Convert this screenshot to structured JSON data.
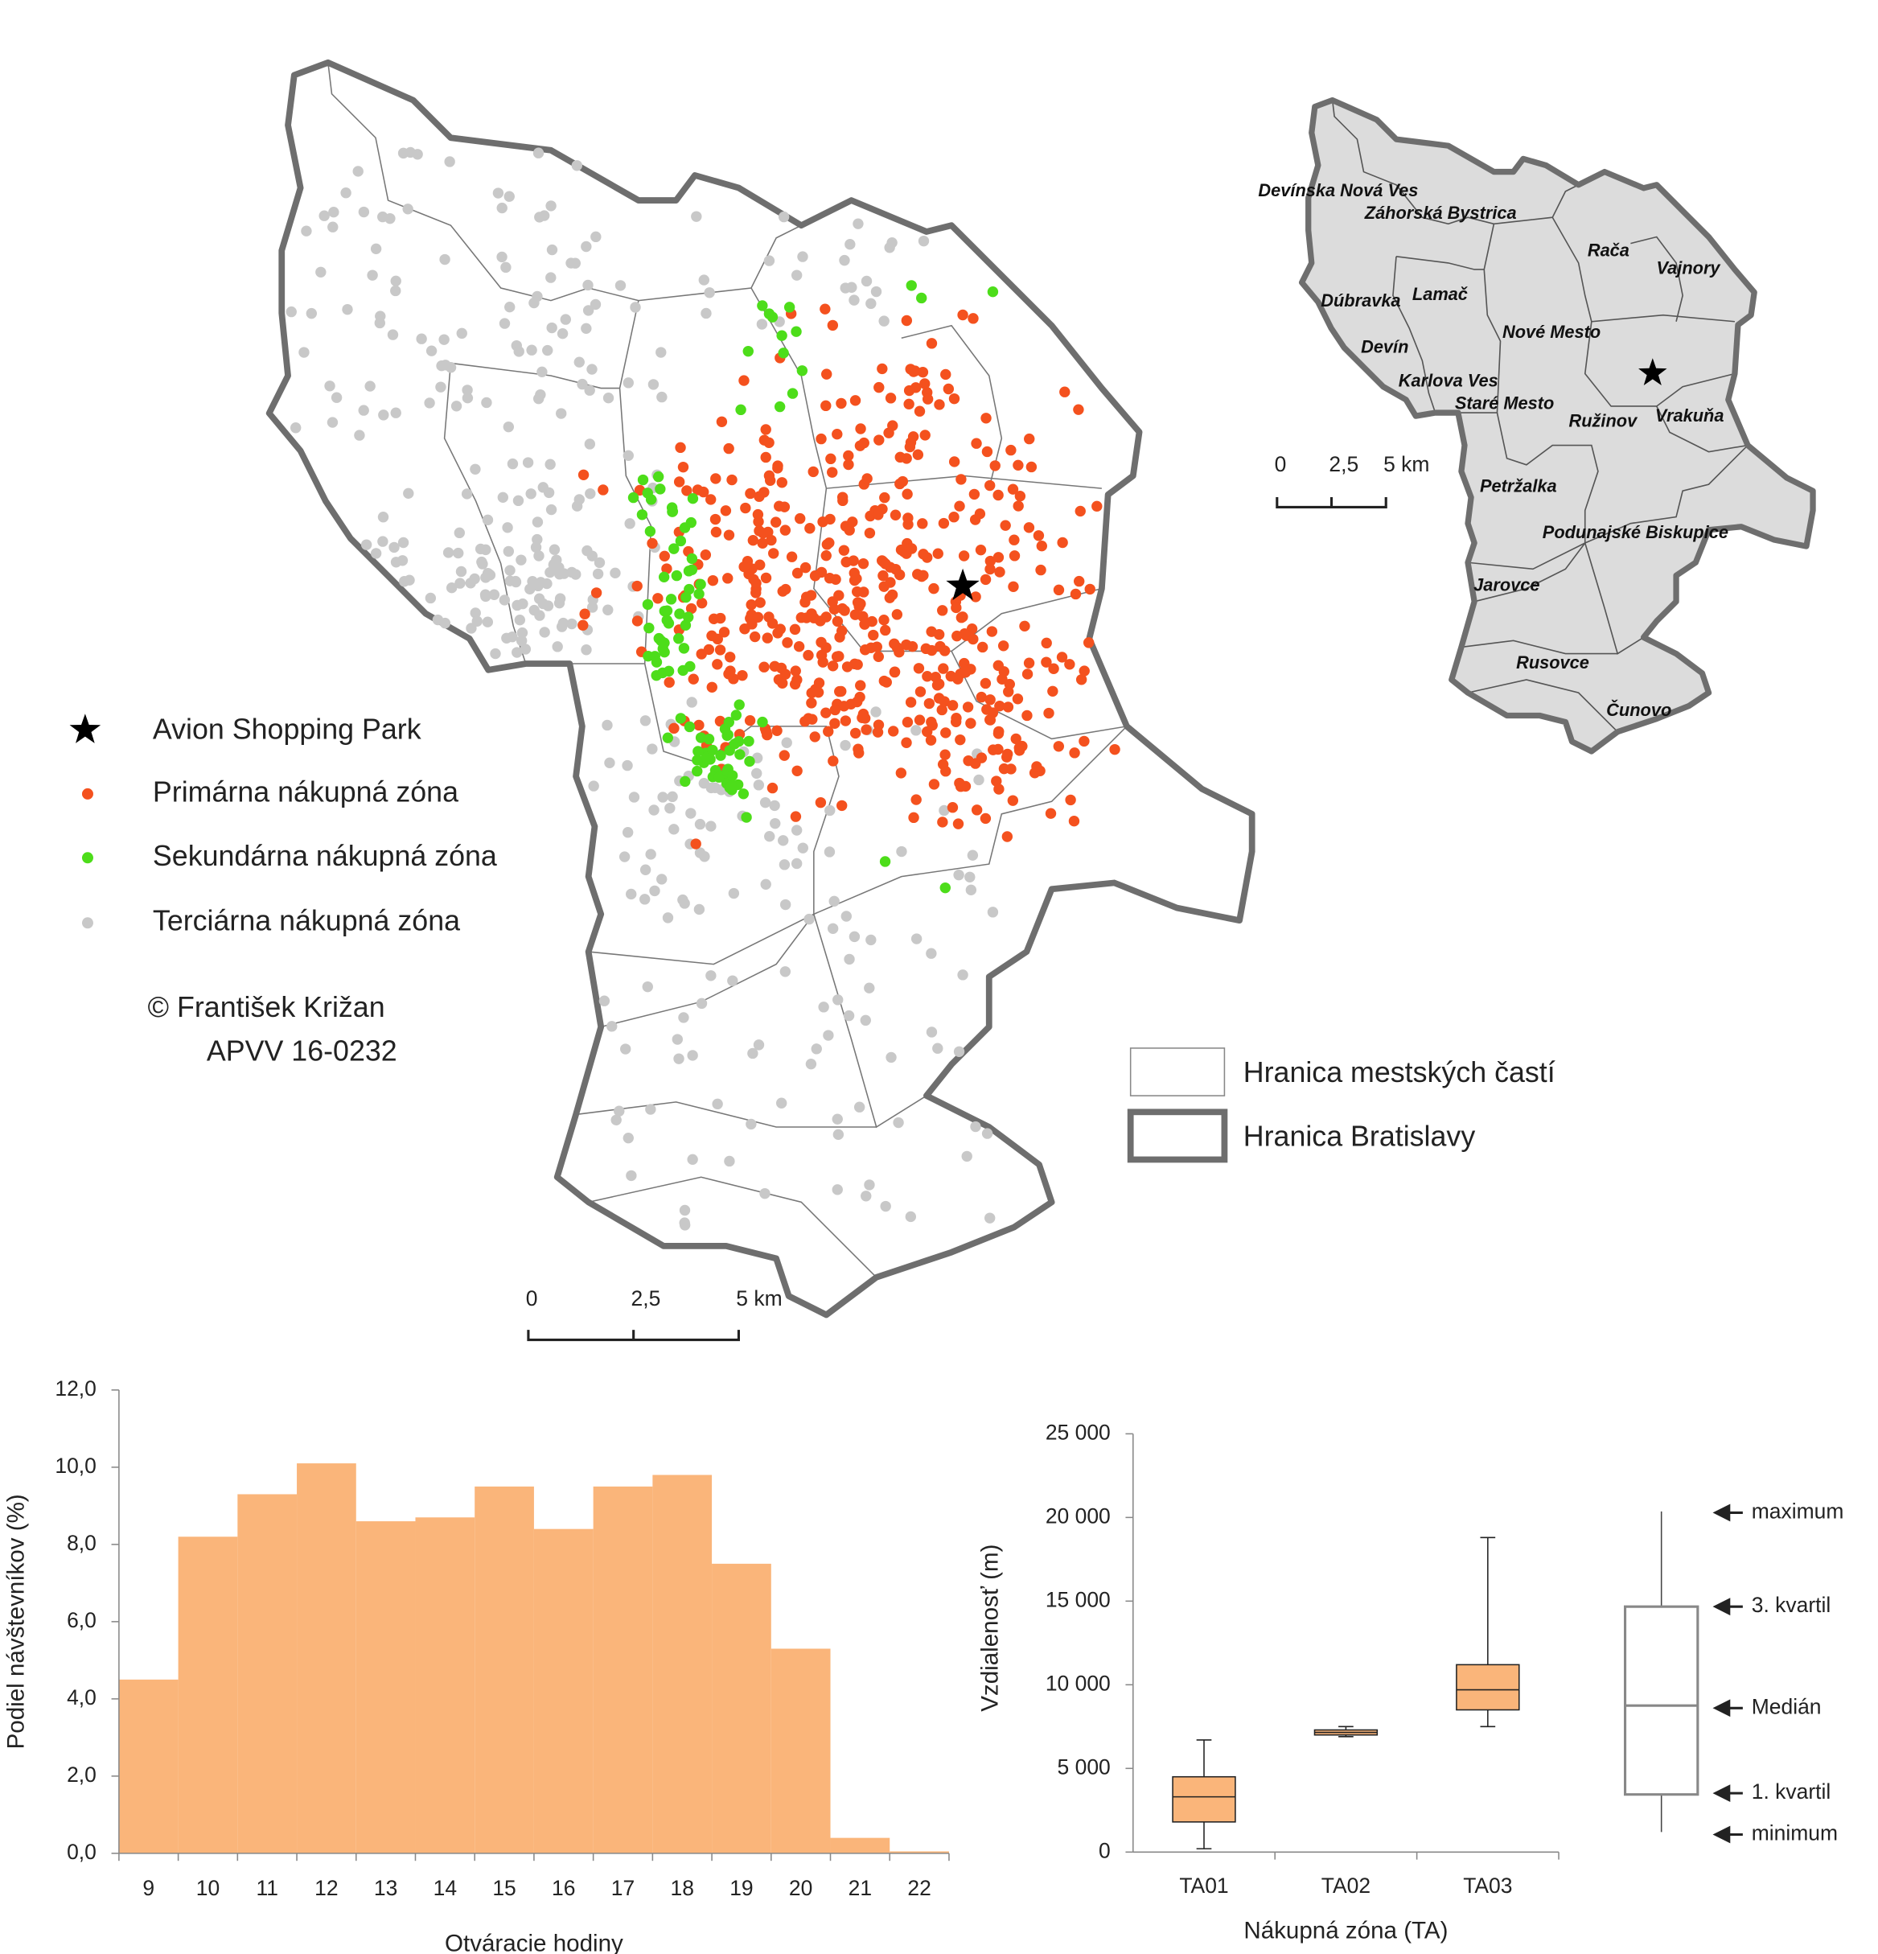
{
  "map": {
    "legend": [
      {
        "label": "Avion Shopping Park",
        "color": "#000000"
      },
      {
        "label": "Primárna nákupná zóna",
        "color": "#f4511e"
      },
      {
        "label": "Sekundárna nákupná zóna",
        "color": "#4ddd1a"
      },
      {
        "label": "Terciárna nákupná zóna",
        "color": "#c8c8c8"
      }
    ],
    "copyright": "© František Križan",
    "project": "APVV 16-0232",
    "scale_labels": [
      "0",
      "2,5",
      "5 km"
    ],
    "boundary_legend": [
      "Hranica mestských častí",
      "Hranica Bratislavy"
    ],
    "districts": [
      "Devínska Nová Ves",
      "Záhorská Bystrica",
      "Rača",
      "Vajnory",
      "Dúbravka",
      "Lamač",
      "Devín",
      "Nové Mesto",
      "Karlova Ves",
      "Staré Mesto",
      "Ružinov",
      "Vrakuňa",
      "Petržalka",
      "Podunajské Biskupice",
      "Jarovce",
      "Rusovce",
      "Čunovo"
    ]
  },
  "chart_data": [
    {
      "type": "bar",
      "x_label": "Otváracie hodiny",
      "y_label": "Podiel návštevníkov (%)",
      "categories": [
        "9",
        "10",
        "11",
        "12",
        "13",
        "14",
        "15",
        "16",
        "17",
        "18",
        "19",
        "20",
        "21",
        "22"
      ],
      "values": [
        4.5,
        8.2,
        9.3,
        10.1,
        8.6,
        8.7,
        9.5,
        8.4,
        9.5,
        9.8,
        7.5,
        5.3,
        0.4,
        0.05
      ],
      "color": "#fab57a",
      "ylim": [
        0,
        12
      ],
      "yticks": [
        {
          "value": 0,
          "label": "0,0"
        },
        {
          "value": 2,
          "label": "2,0"
        },
        {
          "value": 4,
          "label": "4,0"
        },
        {
          "value": 6,
          "label": "6,0"
        },
        {
          "value": 8,
          "label": "8,0"
        },
        {
          "value": 10,
          "label": "10,0"
        },
        {
          "value": 12,
          "label": "12,0"
        }
      ]
    },
    {
      "type": "box",
      "x_label": "Nákupná zóna (TA)",
      "y_label": "Vzdialenosť (m)",
      "categories": [
        "TA01",
        "TA02",
        "TA03"
      ],
      "min": [
        200,
        6900,
        7500
      ],
      "q1": [
        1800,
        7000,
        8500
      ],
      "median": [
        3300,
        7150,
        9700
      ],
      "q3": [
        4500,
        7300,
        11200
      ],
      "max": [
        6700,
        7500,
        18800
      ],
      "color": "#fab57a",
      "ylim": [
        0,
        25000
      ],
      "yticks": [
        0,
        {
          "value": 5000,
          "label": "5 000"
        },
        {
          "value": 10000,
          "label": "10 000"
        },
        {
          "value": 15000,
          "label": "15 000"
        },
        {
          "value": 20000,
          "label": "20 000"
        },
        {
          "value": 25000,
          "label": "25 000"
        }
      ],
      "key_labels": [
        "maximum",
        "3. kvartil",
        "Medián",
        "1. kvartil",
        "minimum"
      ]
    }
  ]
}
